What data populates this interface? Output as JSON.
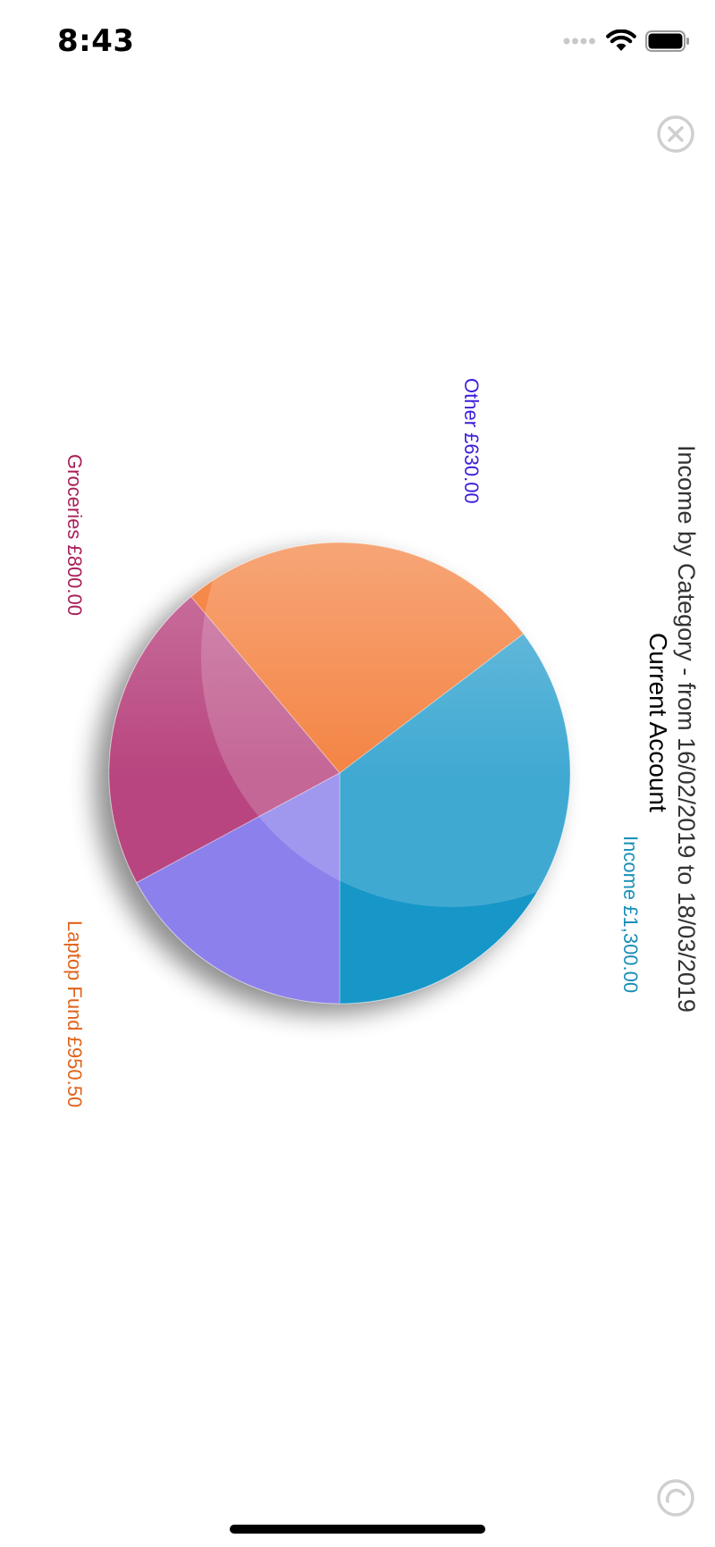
{
  "status_bar": {
    "time": "8:43"
  },
  "icons": {
    "signal": "signal-dots-icon",
    "wifi": "wifi-icon",
    "battery": "battery-icon",
    "close": "close-circle-icon",
    "rotate": "rotate-icon"
  },
  "chart_data": {
    "type": "pie",
    "title": "Income by Category - from 16/02/2019 to 18/03/2019",
    "subtitle": "Current Account",
    "slices": [
      {
        "label": "Income",
        "value": 1300.0,
        "display": "Income £1,300.00",
        "color": "#1597c8",
        "label_color": "#1a8fb8"
      },
      {
        "label": "Laptop Fund",
        "value": 950.5,
        "display": "Laptop Fund £950.50",
        "color": "#f26a1a",
        "label_color": "#e0641c"
      },
      {
        "label": "Groceries",
        "value": 800.0,
        "display": "Groceries £800.00",
        "color": "#b8447f",
        "label_color": "#a8205a"
      },
      {
        "label": "Other",
        "value": 630.0,
        "display": "Other £630.00",
        "color": "#8c80ec",
        "label_color": "#3a1fd8"
      }
    ],
    "legend": "none",
    "grid": false
  }
}
